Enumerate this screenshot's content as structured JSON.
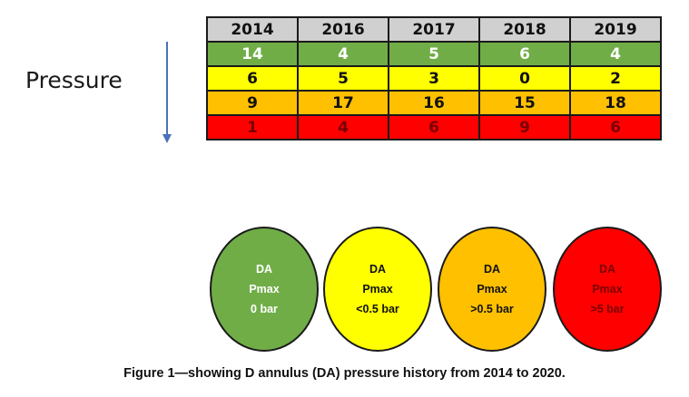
{
  "side_label": "Pressure",
  "table": {
    "years": [
      "2014",
      "2016",
      "2017",
      "2018",
      "2019"
    ],
    "rows": [
      {
        "color": "#70ad47",
        "values": [
          "14",
          "4",
          "5",
          "6",
          "4"
        ]
      },
      {
        "color": "#ffff00",
        "values": [
          "6",
          "5",
          "3",
          "0",
          "2"
        ]
      },
      {
        "color": "#ffc000",
        "values": [
          "9",
          "17",
          "16",
          "15",
          "18"
        ]
      },
      {
        "color": "#ff0000",
        "values": [
          "1",
          "4",
          "6",
          "9",
          "6"
        ]
      }
    ]
  },
  "legend": [
    {
      "color": "#70ad47",
      "line1": "DA",
      "line2": "Pmax",
      "line3": "0 bar"
    },
    {
      "color": "#ffff00",
      "line1": "DA",
      "line2": "Pmax",
      "line3": "<0.5 bar"
    },
    {
      "color": "#ffc000",
      "line1": "DA",
      "line2": "Pmax",
      "line3": ">0.5 bar"
    },
    {
      "color": "#ff0000",
      "line1": "DA",
      "line2": "Pmax",
      "line3": ">5 bar"
    }
  ],
  "caption": "Figure 1—showing D annulus (DA) pressure history from 2014 to 2020.",
  "arrow_icon": "down-arrow-icon"
}
